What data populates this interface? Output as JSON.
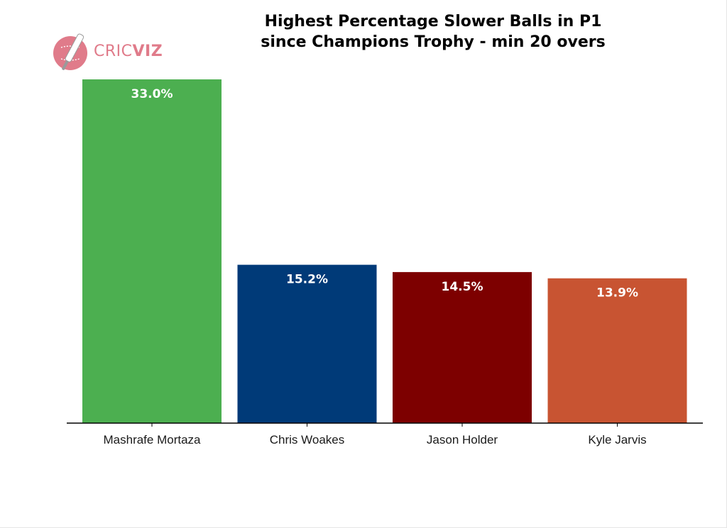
{
  "logo": {
    "icon": "cricket-bat-ball-icon",
    "text_part1": "CRIC",
    "text_part2": "VIZ",
    "color": "#e07b8a"
  },
  "chart_data": {
    "type": "bar",
    "title_line1": "Highest Percentage Slower Balls in P1",
    "title_line2": "since Champions Trophy - min 20 overs",
    "categories": [
      "Mashrafe Mortaza",
      "Chris Woakes",
      "Jason Holder",
      "Kyle Jarvis"
    ],
    "values": [
      33.0,
      15.2,
      14.5,
      13.9
    ],
    "value_labels": [
      "33.0%",
      "15.2%",
      "14.5%",
      "13.9%"
    ],
    "colors": [
      "#4caf50",
      "#003a78",
      "#7d0000",
      "#c85432"
    ],
    "xlabel": "",
    "ylabel": "",
    "ylim": [
      0,
      33.0
    ],
    "grid": false,
    "legend": "none"
  }
}
